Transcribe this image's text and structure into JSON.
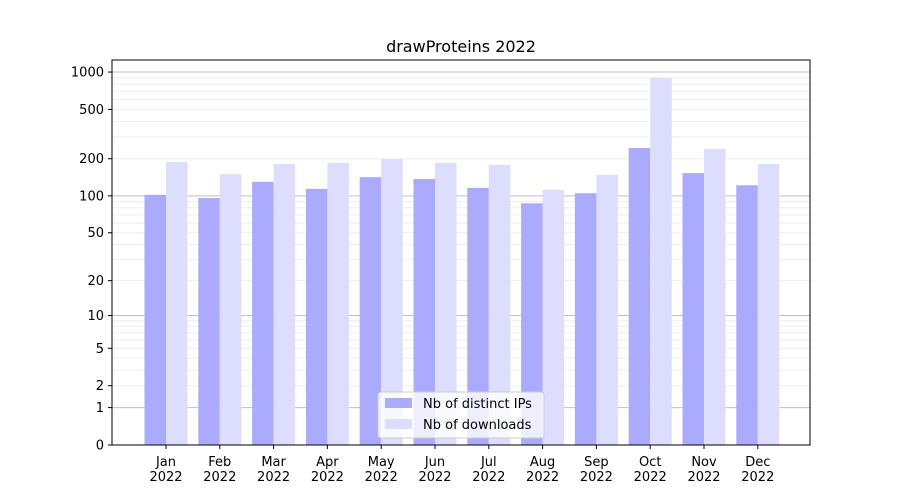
{
  "chart_data": {
    "type": "bar",
    "title": "drawProteins 2022",
    "xlabel": "",
    "ylabel": "",
    "yscale": "log10(1+y)",
    "ylim": [
      0,
      1200
    ],
    "yticks": [
      0,
      1,
      2,
      5,
      10,
      20,
      50,
      100,
      200,
      500,
      1000
    ],
    "categories": [
      "Jan\n2022",
      "Feb\n2022",
      "Mar\n2022",
      "Apr\n2022",
      "May\n2022",
      "Jun\n2022",
      "Jul\n2022",
      "Aug\n2022",
      "Sep\n2022",
      "Oct\n2022",
      "Nov\n2022",
      "Dec\n2022"
    ],
    "series": [
      {
        "name": "Nb of distinct IPs",
        "color": "#aaaaff",
        "values": [
          102,
          96,
          130,
          114,
          142,
          137,
          116,
          87,
          105,
          244,
          153,
          122
        ]
      },
      {
        "name": "Nb of downloads",
        "color": "#ddddff",
        "values": [
          188,
          150,
          181,
          185,
          199,
          185,
          178,
          112,
          148,
          896,
          240,
          181
        ]
      }
    ],
    "grid": true,
    "legend": "bottom-center"
  }
}
